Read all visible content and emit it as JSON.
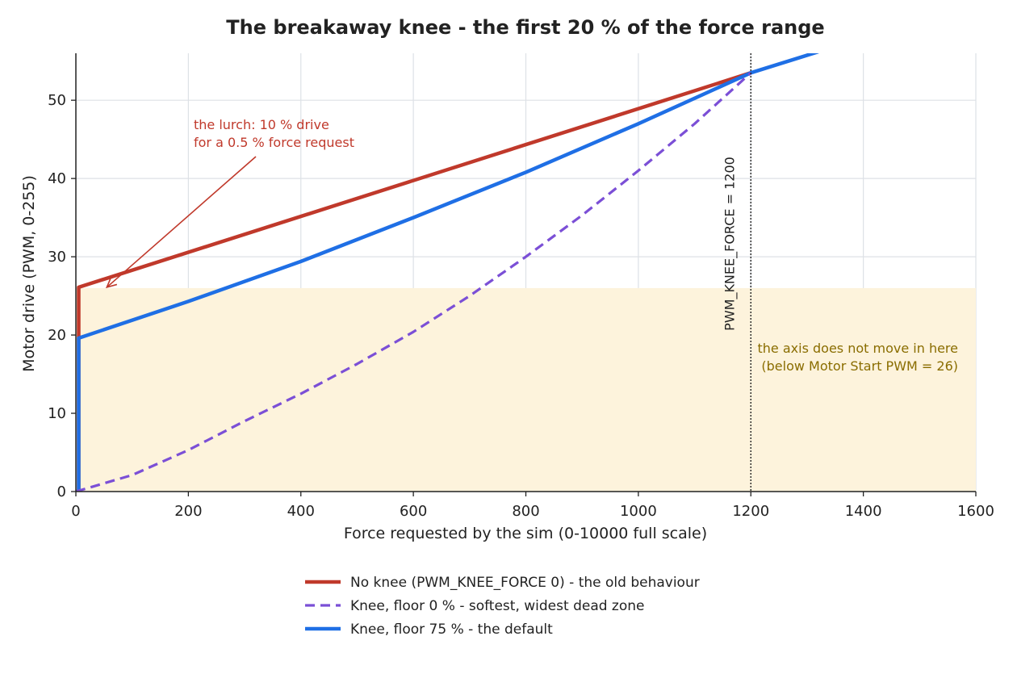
{
  "chart_data": {
    "type": "line",
    "title": "The breakaway knee - the first 20 % of the force range",
    "xlabel": "Force requested by the sim  (0-10000 full scale)",
    "ylabel": "Motor drive  (PWM, 0-255)",
    "xlim": [
      0,
      1600
    ],
    "ylim": [
      0,
      56
    ],
    "xticks": [
      0,
      200,
      400,
      600,
      800,
      1000,
      1200,
      1400,
      1600
    ],
    "yticks": [
      0,
      10,
      20,
      30,
      40,
      50
    ],
    "grid": true,
    "legend_position": "bottom-center",
    "series": [
      {
        "name": "No knee  (PWM_KNEE_FORCE 0) - the old behaviour",
        "color": "#c0392b",
        "style": "solid",
        "x": [
          0,
          5,
          5,
          1200
        ],
        "y": [
          0,
          0,
          26.1,
          53.5
        ]
      },
      {
        "name": "Knee, floor 0 %  - softest, widest dead zone",
        "color": "#7b4fd6",
        "style": "dashed",
        "x": [
          0,
          100,
          200,
          300,
          400,
          500,
          600,
          700,
          800,
          900,
          1000,
          1100,
          1200
        ],
        "y": [
          0,
          2.1,
          5.3,
          9.0,
          12.5,
          16.3,
          20.4,
          25.0,
          30.0,
          35.3,
          41.0,
          47.0,
          53.5
        ]
      },
      {
        "name": "Knee, floor 75 %  - the default",
        "color": "#1f6fe5",
        "style": "solid",
        "x": [
          0,
          5,
          5,
          200,
          400,
          600,
          800,
          1000,
          1200,
          1320
        ],
        "y": [
          0,
          0,
          19.6,
          24.3,
          29.4,
          35.0,
          40.8,
          47.0,
          53.5,
          56.2
        ]
      }
    ],
    "annotations": {
      "dead_zone": {
        "threshold": 26,
        "text": [
          "the axis does not move in here",
          "(below Motor Start PWM = 26)"
        ],
        "color": "#8a6d00",
        "fill": "#fdf3dc"
      },
      "knee_line": {
        "x": 1200,
        "text": "PWM_KNEE_FORCE = 1200"
      },
      "lurch": {
        "text": [
          "the lurch: 10 % drive",
          "for a 0.5 % force request"
        ],
        "color": "#c0392b",
        "tip_x": 55,
        "tip_y": 26.1,
        "tail_x": 320,
        "tail_y": 42.8
      }
    }
  }
}
